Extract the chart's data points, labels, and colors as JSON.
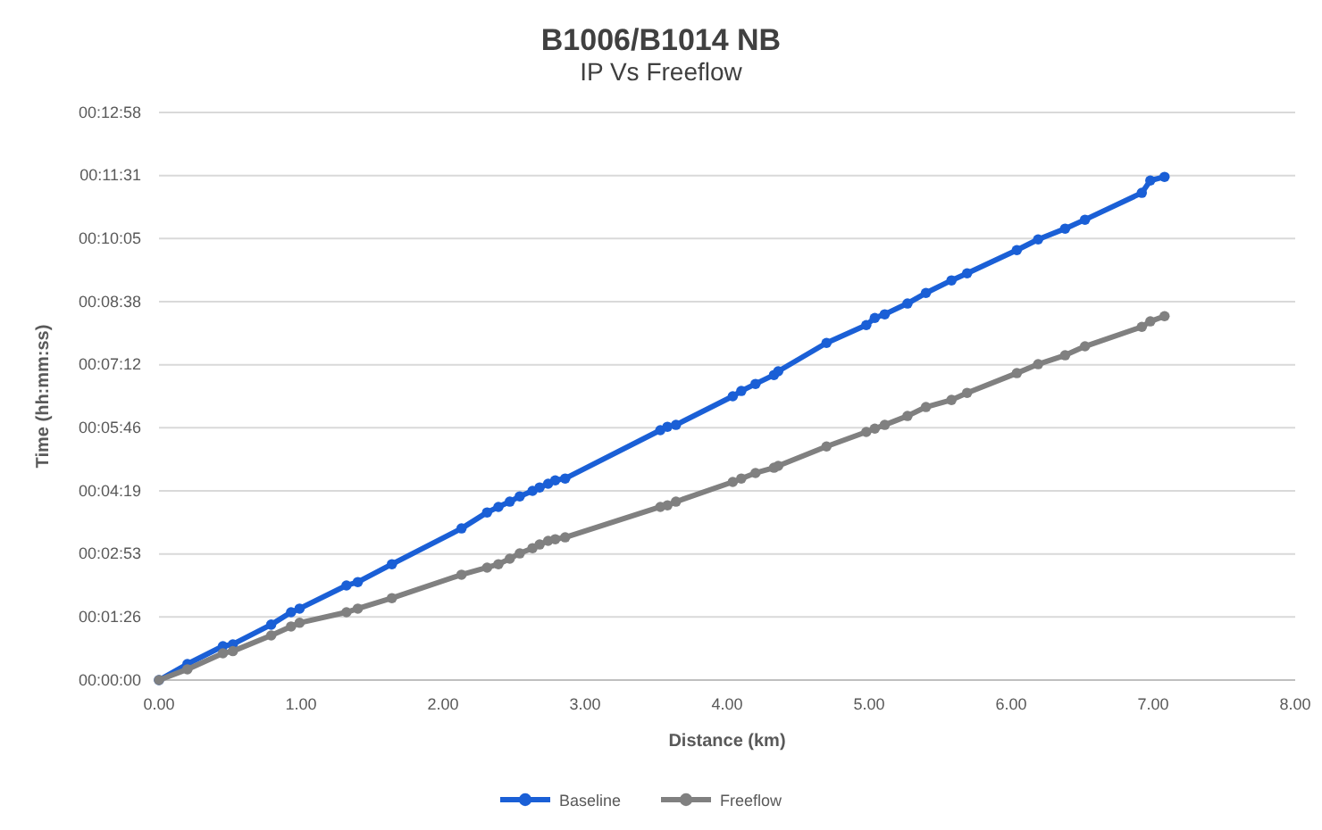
{
  "chart_data": {
    "type": "line",
    "title": "B1006/B1014 NB",
    "subtitle": "IP Vs Freeflow",
    "xlabel": "Distance (km)",
    "ylabel": "Time (hh:mm:ss)",
    "x": [
      0,
      0.2,
      0.45,
      0.52,
      0.79,
      0.93,
      0.99,
      1.32,
      1.4,
      1.64,
      2.13,
      2.31,
      2.39,
      2.47,
      2.54,
      2.63,
      2.68,
      2.74,
      2.79,
      2.86,
      3.53,
      3.58,
      3.64,
      4.04,
      4.1,
      4.2,
      4.33,
      4.36,
      4.7,
      4.98,
      5.04,
      5.11,
      5.27,
      5.4,
      5.58,
      5.69,
      6.04,
      6.19,
      6.38,
      6.52,
      6.92,
      6.98,
      7.08
    ],
    "series": [
      {
        "name": "Baseline",
        "color": "#1a5fd6",
        "values": [
          0,
          0.0061,
          0.0129,
          0.0136,
          0.0211,
          0.0258,
          0.0272,
          0.036,
          0.0373,
          0.0441,
          0.0577,
          0.0638,
          0.0659,
          0.0679,
          0.0699,
          0.072,
          0.0733,
          0.0747,
          0.076,
          0.0767,
          0.0951,
          0.0964,
          0.0971,
          0.108,
          0.11,
          0.1127,
          0.1161,
          0.1175,
          0.1283,
          0.1351,
          0.1378,
          0.1392,
          0.1433,
          0.1473,
          0.1521,
          0.1548,
          0.1636,
          0.1677,
          0.1718,
          0.1752,
          0.1854,
          0.1901,
          0.1915
        ]
      },
      {
        "name": "Freeflow",
        "color": "#808080",
        "values": [
          0,
          0.0041,
          0.0102,
          0.011,
          0.017,
          0.0204,
          0.0218,
          0.0258,
          0.0272,
          0.0312,
          0.0401,
          0.0428,
          0.0441,
          0.0462,
          0.0482,
          0.0502,
          0.0516,
          0.053,
          0.0536,
          0.0543,
          0.0659,
          0.0665,
          0.0679,
          0.0754,
          0.0767,
          0.0788,
          0.0808,
          0.0815,
          0.0889,
          0.0944,
          0.0957,
          0.0971,
          0.1005,
          0.1039,
          0.1066,
          0.1093,
          0.1168,
          0.1202,
          0.1236,
          0.127,
          0.1344,
          0.1365,
          0.1385
        ]
      }
    ],
    "xlim": [
      0,
      8
    ],
    "xticks": [
      {
        "value": 0,
        "label": "0.00"
      },
      {
        "value": 1,
        "label": "1.00"
      },
      {
        "value": 2,
        "label": "2.00"
      },
      {
        "value": 3,
        "label": "3.00"
      },
      {
        "value": 4,
        "label": "4.00"
      },
      {
        "value": 5,
        "label": "5.00"
      },
      {
        "value": 6,
        "label": "6.00"
      },
      {
        "value": 7,
        "label": "7.00"
      },
      {
        "value": 8,
        "label": "8.00"
      }
    ],
    "ylim": [
      0,
      0.216
    ],
    "yticks": [
      {
        "value": 0,
        "label": "00:00:00"
      },
      {
        "value": 0.024,
        "label": "00:01:26"
      },
      {
        "value": 0.048,
        "label": "00:02:53"
      },
      {
        "value": 0.072,
        "label": "00:04:19"
      },
      {
        "value": 0.096,
        "label": "00:05:46"
      },
      {
        "value": 0.12,
        "label": "00:07:12"
      },
      {
        "value": 0.144,
        "label": "00:08:38"
      },
      {
        "value": 0.168,
        "label": "00:10:05"
      },
      {
        "value": 0.192,
        "label": "00:11:31"
      },
      {
        "value": 0.216,
        "label": "00:12:58"
      }
    ],
    "grid": "y",
    "legend": "bottom",
    "marker": "circle",
    "line_style": "solid"
  }
}
